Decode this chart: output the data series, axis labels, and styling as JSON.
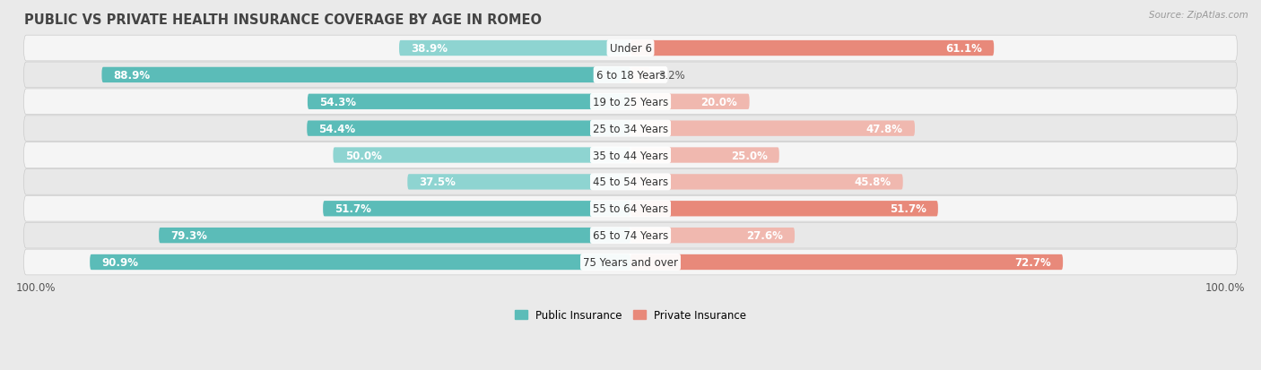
{
  "title": "PUBLIC VS PRIVATE HEALTH INSURANCE COVERAGE BY AGE IN ROMEO",
  "source": "Source: ZipAtlas.com",
  "categories": [
    "Under 6",
    "6 to 18 Years",
    "19 to 25 Years",
    "25 to 34 Years",
    "35 to 44 Years",
    "45 to 54 Years",
    "55 to 64 Years",
    "65 to 74 Years",
    "75 Years and over"
  ],
  "public_values": [
    38.9,
    88.9,
    54.3,
    54.4,
    50.0,
    37.5,
    51.7,
    79.3,
    90.9
  ],
  "private_values": [
    61.1,
    3.2,
    20.0,
    47.8,
    25.0,
    45.8,
    51.7,
    27.6,
    72.7
  ],
  "public_color": "#5bbcb8",
  "public_color_light": "#8ed4d1",
  "private_color": "#e8897a",
  "private_color_light": "#f0b8af",
  "background_color": "#eaeaea",
  "row_bg_light": "#f5f5f5",
  "row_bg_dark": "#e8e8e8",
  "max_value": 100.0,
  "title_fontsize": 10.5,
  "label_fontsize": 8.5,
  "value_fontsize": 8.5,
  "tick_fontsize": 8.5,
  "white_text_threshold": 12
}
